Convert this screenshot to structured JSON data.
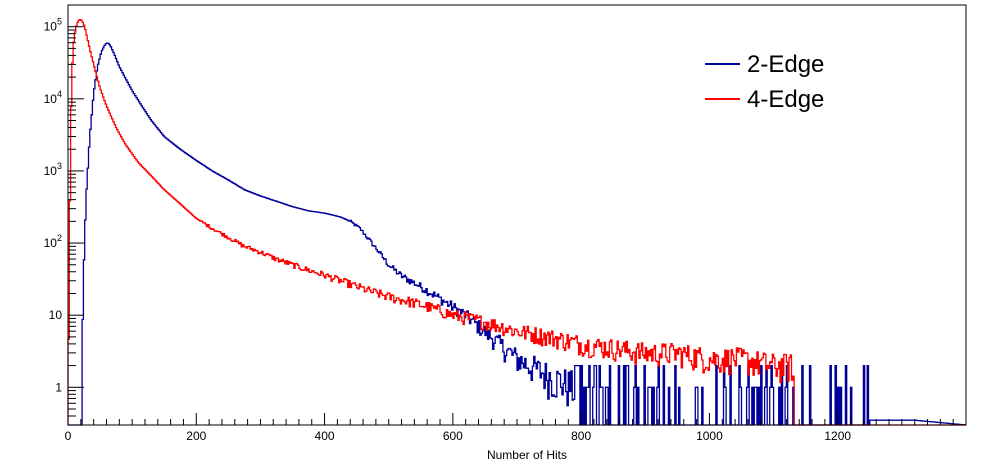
{
  "chart_data": {
    "type": "line",
    "title": "",
    "xlabel": "Number of Hits",
    "ylabel": "",
    "xlim": [
      0,
      1400
    ],
    "ylim": [
      0.3,
      200000
    ],
    "y_scale": "log",
    "grid": false,
    "legend_position": "top-right",
    "x_ticks": [
      0,
      200,
      400,
      600,
      800,
      1000,
      1200
    ],
    "x_tick_labels": [
      "0",
      "200",
      "400",
      "600",
      "800",
      "1000",
      "1200"
    ],
    "y_ticks": [
      1,
      10,
      100,
      1000,
      10000,
      100000
    ],
    "y_tick_labels": [
      {
        "base": "1",
        "exp": ""
      },
      {
        "base": "10",
        "exp": ""
      },
      {
        "base": "10",
        "exp": "2"
      },
      {
        "base": "10",
        "exp": "3"
      },
      {
        "base": "10",
        "exp": "4"
      },
      {
        "base": "10",
        "exp": "5"
      }
    ],
    "series": [
      {
        "name": "2-Edge",
        "color": "#000099",
        "x": [
          20,
          24,
          28,
          34,
          40,
          46,
          52,
          58,
          62,
          66,
          72,
          80,
          90,
          100,
          115,
          130,
          150,
          175,
          200,
          225,
          250,
          275,
          300,
          325,
          350,
          375,
          400,
          425,
          440,
          455,
          470,
          485,
          500,
          520,
          540,
          560,
          580,
          600,
          620,
          640,
          660,
          680,
          700,
          720,
          740,
          760,
          780,
          800,
          830,
          860,
          900,
          960,
          1040,
          1140,
          1250,
          1320,
          1400
        ],
        "y": [
          0.3,
          30,
          400,
          3000,
          12000,
          28000,
          45000,
          57000,
          60000,
          55000,
          42000,
          28000,
          19000,
          13000,
          8000,
          5000,
          3000,
          2000,
          1400,
          1000,
          750,
          550,
          450,
          380,
          320,
          280,
          260,
          230,
          200,
          160,
          110,
          75,
          50,
          35,
          28,
          22,
          17,
          13,
          10,
          7,
          5,
          3.5,
          2.5,
          2,
          1.6,
          1.3,
          1.1,
          0.9,
          0.8,
          0.7,
          0.6,
          0.5,
          0.45,
          0.4,
          0.35,
          0.35,
          0.3
        ]
      },
      {
        "name": "4-Edge",
        "color": "#ff0000",
        "x": [
          0,
          2,
          4,
          6,
          8,
          10,
          12,
          14,
          16,
          18,
          20,
          22,
          24,
          26,
          30,
          35,
          40,
          50,
          60,
          75,
          90,
          110,
          130,
          150,
          175,
          200,
          225,
          250,
          275,
          300,
          325,
          350,
          375,
          400,
          425,
          450,
          475,
          500,
          525,
          550,
          575,
          600,
          625,
          650,
          675,
          700,
          725,
          750,
          775,
          800,
          850,
          900,
          950,
          1000,
          1050,
          1100,
          1130,
          1135,
          1200,
          1300,
          1400
        ],
        "y": [
          0.3,
          50,
          3000,
          20000,
          50000,
          75000,
          95000,
          110000,
          120000,
          125000,
          125000,
          120000,
          110000,
          100000,
          70000,
          45000,
          30000,
          14000,
          8000,
          4000,
          2300,
          1300,
          850,
          550,
          350,
          220,
          160,
          120,
          90,
          75,
          60,
          50,
          42,
          36,
          30,
          25,
          21,
          18,
          16,
          14,
          12,
          10,
          9,
          8,
          7,
          6,
          5.5,
          5,
          4.5,
          4,
          3.5,
          3,
          3,
          2.5,
          2.5,
          2,
          2,
          0.3,
          0.3,
          0.3,
          0.3
        ]
      }
    ]
  }
}
